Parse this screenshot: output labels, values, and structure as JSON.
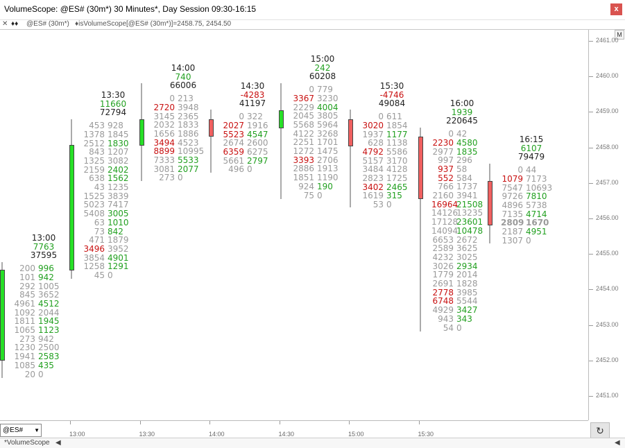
{
  "window": {
    "title": "VolumeScope: @ES# (30m*) 30 Minutes*, Day Session 09:30-16:15",
    "close_glyph": "x"
  },
  "studybar": {
    "glyph_left": "✕",
    "glyph_mid": "♦♦",
    "symbol": "@ES# (30m*)",
    "study": "♦isVolumeScope[@ES# (30m*)]=2458.75, 2454.50"
  },
  "price_axis": {
    "m_label": "M",
    "labels": [
      "2461.00",
      "2460.00",
      "2459.00",
      "2458.00",
      "2457.00",
      "2456.00",
      "2455.00",
      "2454.00",
      "2453.00",
      "2452.00",
      "2451.00"
    ]
  },
  "time_axis": {
    "labels": [
      "13:00",
      "13:30",
      "14:00",
      "14:30",
      "15:00",
      "15:30"
    ]
  },
  "symbol_select": "@ES#",
  "refresh_glyph": "↻",
  "bottom": {
    "tab": "*VolumeScope",
    "scroll_glyph": "◀",
    "right_glyph": "◀"
  },
  "bars": [
    {
      "time": "13:00",
      "delta": "7763",
      "delta_sign": "pos",
      "volume": "37595",
      "rows": [
        [
          "200",
          "996"
        ],
        [
          "101",
          "942"
        ],
        [
          "292",
          "1005"
        ],
        [
          "845",
          "3652"
        ],
        [
          "4961",
          "4512"
        ],
        [
          "1092",
          "2044"
        ],
        [
          "1811",
          "1945"
        ],
        [
          "1065",
          "1123"
        ],
        [
          "273",
          "942"
        ],
        [
          "1230",
          "2500"
        ],
        [
          "1941",
          "2583"
        ],
        [
          "1085",
          "435"
        ],
        [
          "20",
          "0"
        ]
      ],
      "cls": [
        [
          "g",
          "gr"
        ],
        [
          "g",
          "gr"
        ],
        [
          "g",
          "g"
        ],
        [
          "g",
          "g"
        ],
        [
          "g",
          "gr"
        ],
        [
          "g",
          "g"
        ],
        [
          "g",
          "gr"
        ],
        [
          "g",
          "gr"
        ],
        [
          "g",
          "g"
        ],
        [
          "g",
          "g"
        ],
        [
          "g",
          "gr"
        ],
        [
          "g",
          "gr"
        ],
        [
          "g",
          "g"
        ]
      ]
    },
    {
      "time": "13:30",
      "delta": "11660",
      "delta_sign": "pos",
      "volume": "72794",
      "rows": [
        [
          "453",
          "928"
        ],
        [
          "1378",
          "1845"
        ],
        [
          "2512",
          "1830"
        ],
        [
          "843",
          "1207"
        ],
        [
          "1325",
          "3082"
        ],
        [
          "2159",
          "2402"
        ],
        [
          "638",
          "1562"
        ],
        [
          "43",
          "1235"
        ],
        [
          "1525",
          "3839"
        ],
        [
          "5023",
          "7417"
        ],
        [
          "5408",
          "3005"
        ],
        [
          "63",
          "1010"
        ],
        [
          "73",
          "842"
        ],
        [
          "471",
          "1879"
        ],
        [
          "3496",
          "3952"
        ],
        [
          "3854",
          "4901"
        ],
        [
          "1258",
          "1291"
        ],
        [
          "45",
          "0"
        ]
      ],
      "cls": [
        [
          "g",
          "g"
        ],
        [
          "g",
          "g"
        ],
        [
          "g",
          "gr"
        ],
        [
          "g",
          "g"
        ],
        [
          "g",
          "g"
        ],
        [
          "g",
          "gr"
        ],
        [
          "g",
          "gr"
        ],
        [
          "g",
          "g"
        ],
        [
          "g",
          "g"
        ],
        [
          "g",
          "g"
        ],
        [
          "g",
          "gr"
        ],
        [
          "g",
          "gr"
        ],
        [
          "g",
          "gr"
        ],
        [
          "g",
          "g"
        ],
        [
          "rd",
          "g"
        ],
        [
          "g",
          "gr"
        ],
        [
          "g",
          "gr"
        ],
        [
          "g",
          "g"
        ]
      ]
    },
    {
      "time": "14:00",
      "delta": "740",
      "delta_sign": "pos",
      "volume": "66006",
      "rows": [
        [
          "0",
          "213"
        ],
        [
          "2720",
          "3948"
        ],
        [
          "3145",
          "2365"
        ],
        [
          "2032",
          "1833"
        ],
        [
          "1656",
          "1886"
        ],
        [
          "3494",
          "4523"
        ],
        [
          "8899",
          "10995"
        ],
        [
          "7333",
          "5533"
        ],
        [
          "3081",
          "2077"
        ],
        [
          "273",
          "0"
        ]
      ],
      "cls": [
        [
          "g",
          "g"
        ],
        [
          "rd",
          "g"
        ],
        [
          "g",
          "g"
        ],
        [
          "g",
          "g"
        ],
        [
          "g",
          "g"
        ],
        [
          "rd",
          "g"
        ],
        [
          "rd",
          "g"
        ],
        [
          "g",
          "gr"
        ],
        [
          "g",
          "gr"
        ],
        [
          "g",
          "g"
        ]
      ]
    },
    {
      "time": "14:30",
      "delta": "-4283",
      "delta_sign": "neg",
      "volume": "41197",
      "rows": [
        [
          "0",
          "322"
        ],
        [
          "2027",
          "1916"
        ],
        [
          "5523",
          "4547"
        ],
        [
          "2674",
          "2600"
        ],
        [
          "6359",
          "6275"
        ],
        [
          "5661",
          "2797"
        ],
        [
          "496",
          "0"
        ]
      ],
      "cls": [
        [
          "g",
          "g"
        ],
        [
          "rd",
          "g"
        ],
        [
          "rd",
          "gr"
        ],
        [
          "g",
          "g"
        ],
        [
          "rd",
          "g"
        ],
        [
          "g",
          "gr"
        ],
        [
          "g",
          "g"
        ]
      ]
    },
    {
      "time": "15:00",
      "delta": "242",
      "delta_sign": "pos",
      "volume": "60208",
      "rows": [
        [
          "0",
          "779"
        ],
        [
          "3367",
          "3230"
        ],
        [
          "2229",
          "4004"
        ],
        [
          "2045",
          "3805"
        ],
        [
          "5568",
          "5964"
        ],
        [
          "4122",
          "3268"
        ],
        [
          "2251",
          "1701"
        ],
        [
          "1272",
          "1475"
        ],
        [
          "3393",
          "2706"
        ],
        [
          "2886",
          "1913"
        ],
        [
          "1851",
          "1190"
        ],
        [
          "924",
          "190"
        ],
        [
          "75",
          "0"
        ]
      ],
      "cls": [
        [
          "g",
          "g"
        ],
        [
          "rd",
          "g"
        ],
        [
          "g",
          "gr"
        ],
        [
          "g",
          "g"
        ],
        [
          "g",
          "g"
        ],
        [
          "g",
          "g"
        ],
        [
          "g",
          "g"
        ],
        [
          "g",
          "g"
        ],
        [
          "rd",
          "g"
        ],
        [
          "g",
          "g"
        ],
        [
          "g",
          "g"
        ],
        [
          "g",
          "gr"
        ],
        [
          "g",
          "g"
        ]
      ]
    },
    {
      "time": "15:30",
      "delta": "-4746",
      "delta_sign": "neg",
      "volume": "49084",
      "rows": [
        [
          "0",
          "611"
        ],
        [
          "3020",
          "1854"
        ],
        [
          "1937",
          "1177"
        ],
        [
          "628",
          "1138"
        ],
        [
          "4792",
          "5586"
        ],
        [
          "5157",
          "3170"
        ],
        [
          "3484",
          "4128"
        ],
        [
          "2823",
          "1725"
        ],
        [
          "3402",
          "2465"
        ],
        [
          "1619",
          "315"
        ],
        [
          "53",
          "0"
        ]
      ],
      "cls": [
        [
          "g",
          "g"
        ],
        [
          "rd",
          "g"
        ],
        [
          "g",
          "gr"
        ],
        [
          "g",
          "g"
        ],
        [
          "rd",
          "g"
        ],
        [
          "g",
          "g"
        ],
        [
          "g",
          "g"
        ],
        [
          "g",
          "g"
        ],
        [
          "rd",
          "gr"
        ],
        [
          "g",
          "gr"
        ],
        [
          "g",
          "g"
        ]
      ]
    },
    {
      "time": "16:00",
      "delta": "1939",
      "delta_sign": "pos",
      "volume": "220645",
      "rows": [
        [
          "0",
          "42"
        ],
        [
          "2230",
          "4580"
        ],
        [
          "2977",
          "1835"
        ],
        [
          "997",
          "296"
        ],
        [
          "937",
          "58"
        ],
        [
          "552",
          "584"
        ],
        [
          "766",
          "1737"
        ],
        [
          "2160",
          "3941"
        ],
        [
          "16964",
          "21508"
        ],
        [
          "14126",
          "13235"
        ],
        [
          "17128",
          "23601"
        ],
        [
          "14094",
          "10478"
        ],
        [
          "6653",
          "2672"
        ],
        [
          "2589",
          "3625"
        ],
        [
          "4232",
          "3025"
        ],
        [
          "3026",
          "2934"
        ],
        [
          "1779",
          "2014"
        ],
        [
          "2691",
          "1828"
        ],
        [
          "2778",
          "3985"
        ],
        [
          "6748",
          "5544"
        ],
        [
          "4929",
          "3427"
        ],
        [
          "943",
          "343"
        ],
        [
          "54",
          "0"
        ]
      ],
      "cls": [
        [
          "g",
          "g"
        ],
        [
          "rd",
          "gr"
        ],
        [
          "g",
          "gr"
        ],
        [
          "g",
          "g"
        ],
        [
          "rd",
          "g"
        ],
        [
          "rd",
          "g"
        ],
        [
          "g",
          "g"
        ],
        [
          "g",
          "g"
        ],
        [
          "rd",
          "gr"
        ],
        [
          "g",
          "g"
        ],
        [
          "g",
          "gr"
        ],
        [
          "g",
          "gr"
        ],
        [
          "g",
          "g"
        ],
        [
          "g",
          "g"
        ],
        [
          "g",
          "g"
        ],
        [
          "g",
          "gr"
        ],
        [
          "g",
          "g"
        ],
        [
          "g",
          "g"
        ],
        [
          "rd",
          "g"
        ],
        [
          "rd",
          "g"
        ],
        [
          "g",
          "gr"
        ],
        [
          "g",
          "gr"
        ],
        [
          "g",
          "g"
        ]
      ]
    },
    {
      "time": "16:15",
      "delta": "6107",
      "delta_sign": "pos",
      "volume": "79479",
      "rows": [
        [
          "0",
          "44"
        ],
        [
          "1079",
          "7173"
        ],
        [
          "7547",
          "10693"
        ],
        [
          "9726",
          "7810"
        ],
        [
          "4896",
          "5738"
        ],
        [
          "7135",
          "4714"
        ],
        [
          "2809",
          "1670"
        ],
        [
          "2187",
          "4951"
        ],
        [
          "1307",
          "0"
        ]
      ],
      "cls": [
        [
          "g",
          "g"
        ],
        [
          "rd",
          "g"
        ],
        [
          "g",
          "g"
        ],
        [
          "g",
          "gr"
        ],
        [
          "g",
          "g"
        ],
        [
          "g",
          "gr"
        ],
        [
          "gbd",
          "gbd"
        ],
        [
          "g",
          "gr"
        ],
        [
          "g",
          "g"
        ]
      ]
    }
  ],
  "colors": {
    "up": "#27e027",
    "down": "#f06060",
    "bid_ask_up": "#22a020",
    "bid_ask_down": "#c81010",
    "neutral": "#9a9a9a"
  }
}
